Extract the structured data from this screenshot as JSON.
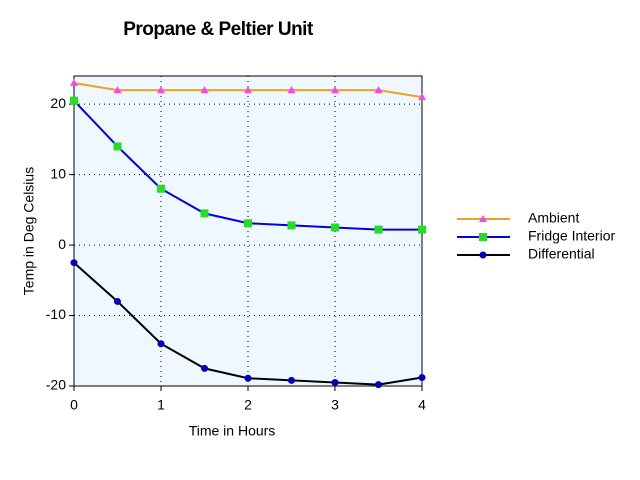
{
  "chart_data": {
    "type": "line",
    "title": "Propane & Peltier Unit",
    "x_label": "Time in Hours",
    "y_label": "Temp in Deg Celsius",
    "x": [
      0,
      0.5,
      1,
      1.5,
      2,
      2.5,
      3,
      3.5,
      4
    ],
    "series": [
      {
        "name": "Ambient",
        "color": "#f0a020",
        "marker_color": "#ff40ff",
        "marker": "triangle",
        "values": [
          23,
          22,
          22,
          22,
          22,
          22,
          22,
          22,
          21
        ]
      },
      {
        "name": "Fridge Interior",
        "color": "#0000e0",
        "marker_color": "#20e020",
        "marker": "square",
        "values": [
          20.5,
          14,
          8,
          4.5,
          3.1,
          2.8,
          2.5,
          2.2,
          2.2
        ]
      },
      {
        "name": "Differential",
        "color": "#000000",
        "marker_color": "#0000c0",
        "marker": "circle",
        "values": [
          -2.5,
          -8,
          -14,
          -17.5,
          -18.9,
          -19.2,
          -19.5,
          -19.8,
          -18.8
        ]
      }
    ],
    "xlim": [
      0,
      4
    ],
    "xticks": [
      0,
      1,
      2,
      3,
      4
    ],
    "ylim": [
      -20,
      24
    ],
    "yticks": [
      -20,
      -10,
      0,
      10,
      20
    ],
    "grid": true,
    "legend": "right"
  }
}
